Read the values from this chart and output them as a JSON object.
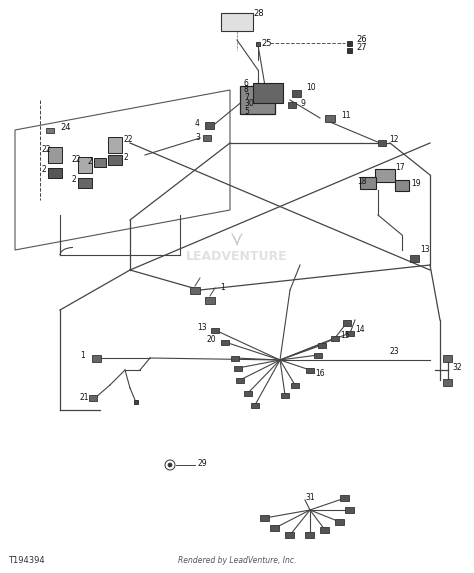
{
  "bg_color": "#ffffff",
  "line_color": "#444444",
  "footer_left": "T194394",
  "footer_right": "Rendered by LeadVenture, Inc.",
  "watermark": "LEADVENTURE"
}
